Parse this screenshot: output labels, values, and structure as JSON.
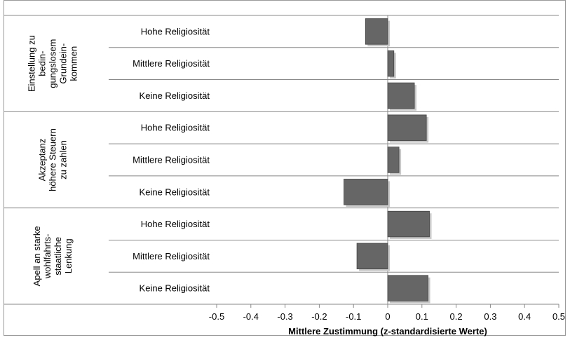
{
  "chart_data": {
    "type": "bar",
    "orientation": "horizontal",
    "xlabel": "Mittlere Zustimmung (z-standardisierte Werte)",
    "xlim": [
      -0.5,
      0.5
    ],
    "xticks": [
      -0.5,
      -0.4,
      -0.3,
      -0.2,
      -0.1,
      0,
      0.1,
      0.2,
      0.3,
      0.4,
      0.5
    ],
    "grid": false,
    "groups": [
      {
        "label_lines": [
          "Einstellung zu",
          "bedin-",
          "gungslosem",
          "Grundein-",
          "kommen"
        ],
        "categories": [
          "Hohe Religiosität",
          "Mittlere Religiosität",
          "Keine Religiosität"
        ],
        "values": [
          -0.065,
          0.018,
          0.078
        ]
      },
      {
        "label_lines": [
          "Akzeptanz",
          "höhere Steuern",
          "zu zahlen"
        ],
        "categories": [
          "Hohe Religiosität",
          "Mittlere Religiosität",
          "Keine Religiosität"
        ],
        "values": [
          0.113,
          0.033,
          -0.128
        ]
      },
      {
        "label_lines": [
          "Apell an starke",
          "wohlfahrts-",
          "staatliche",
          "Lenkung"
        ],
        "categories": [
          "Hohe Religiosität",
          "Mittlere Religiosität",
          "Keine Religiosität"
        ],
        "values": [
          0.122,
          -0.09,
          0.118
        ]
      }
    ],
    "colors": {
      "bar": "#666666",
      "bar_edge": "#444444",
      "shadow": "#c8c8c8",
      "axis": "#888888"
    }
  }
}
